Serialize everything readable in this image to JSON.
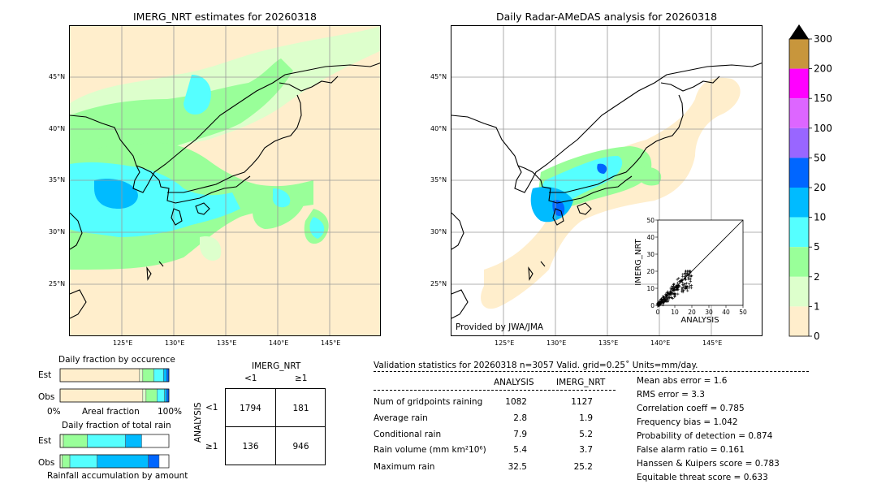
{
  "left_map": {
    "title": "IMERG_NRT estimates for 20260318",
    "lat_labels": [
      "45°N",
      "40°N",
      "35°N",
      "30°N",
      "25°N"
    ],
    "lon_labels": [
      "125°E",
      "130°E",
      "135°E",
      "140°E",
      "145°E"
    ]
  },
  "right_map": {
    "title": "Daily Radar-AMeDAS analysis for 20260318",
    "lat_labels": [
      "45°N",
      "40°N",
      "35°N",
      "30°N",
      "25°N"
    ],
    "lon_labels": [
      "125°E",
      "130°E",
      "135°E",
      "140°E",
      "145°E"
    ],
    "credit": "Provided by JWA/JMA"
  },
  "colorbar": {
    "levels": [
      "300",
      "200",
      "150",
      "100",
      "50",
      "20",
      "10",
      "5",
      "2",
      "1",
      "0"
    ],
    "colors": [
      "#c8963c",
      "#ff00ff",
      "#dd66ff",
      "#9966ff",
      "#0066ff",
      "#00bbff",
      "#55ffff",
      "#99ff99",
      "#ddffcc",
      "#ffeecc"
    ]
  },
  "chart_data": [
    {
      "type": "scatter",
      "name": "inset",
      "xlabel": "ANALYSIS",
      "ylabel": "IMERG_NRT",
      "xlim": [
        0,
        50
      ],
      "ylim": [
        0,
        50
      ],
      "xticks": [
        "0",
        "10",
        "20",
        "30",
        "40",
        "50"
      ],
      "yticks": [
        "0",
        "10",
        "20",
        "30",
        "40",
        "50"
      ],
      "reference_line": "y = x",
      "marker": "+"
    },
    {
      "type": "bar",
      "name": "fraction_by_occurrence",
      "title": "Daily fraction by occurence",
      "categories": [
        "Est",
        "Obs"
      ],
      "xlabel": "Areal fraction",
      "x_left": "0%",
      "x_right": "100%",
      "stacked": true,
      "series": [
        {
          "values": [
            0.73,
            0.76
          ],
          "color": "#ffeecc"
        },
        {
          "values": [
            0.03,
            0.03
          ],
          "color": "#ddffcc"
        },
        {
          "values": [
            0.1,
            0.1
          ],
          "color": "#99ff99"
        },
        {
          "values": [
            0.09,
            0.07
          ],
          "color": "#55ffff"
        },
        {
          "values": [
            0.03,
            0.02
          ],
          "color": "#00bbff"
        },
        {
          "values": [
            0.02,
            0.02
          ],
          "color": "#0066ff"
        }
      ]
    },
    {
      "type": "bar",
      "name": "fraction_of_total_rain",
      "title": "Daily fraction of total rain",
      "categories": [
        "Est",
        "Obs"
      ],
      "xlabel": "Rainfall accumulation by amount",
      "stacked": true,
      "series": [
        {
          "values": [
            0.03,
            0.02
          ],
          "color": "#ddffcc"
        },
        {
          "values": [
            0.22,
            0.07
          ],
          "color": "#99ff99"
        },
        {
          "values": [
            0.35,
            0.25
          ],
          "color": "#55ffff"
        },
        {
          "values": [
            0.15,
            0.47
          ],
          "color": "#00bbff"
        },
        {
          "values": [
            0.0,
            0.1
          ],
          "color": "#0066ff"
        }
      ]
    },
    {
      "type": "table",
      "name": "contingency",
      "title": "IMERG_NRT",
      "col_labels": [
        "<1",
        "≥1"
      ],
      "row_title": "ANALYSIS",
      "row_labels": [
        "<1",
        "≥1"
      ],
      "cells": [
        [
          "1794",
          "181"
        ],
        [
          "136",
          "946"
        ]
      ]
    },
    {
      "type": "table",
      "name": "validation",
      "title": "Validation statistics for 20260318  n=3057 Valid. grid=0.25˚ Units=mm/day.",
      "columns": [
        "ANALYSIS",
        "IMERG_NRT"
      ],
      "rows": [
        {
          "label": "Num of gridpoints raining",
          "analysis": "1082",
          "imerg": "1127"
        },
        {
          "label": "Average rain",
          "analysis": "2.8",
          "imerg": "1.9"
        },
        {
          "label": "Conditional rain",
          "analysis": "7.9",
          "imerg": "5.2"
        },
        {
          "label": "Rain volume (mm km²10⁶)",
          "analysis": "5.4",
          "imerg": "3.7"
        },
        {
          "label": "Maximum rain",
          "analysis": "32.5",
          "imerg": "25.2"
        }
      ],
      "scores": [
        "Mean abs error =    1.6",
        "RMS error =    3.3",
        "Correlation coeff =  0.785",
        "Frequency bias =  1.042",
        "Probability of detection =  0.874",
        "False alarm ratio =  0.161",
        "Hanssen & Kuipers score =  0.783",
        "Equitable threat score =  0.633"
      ]
    }
  ]
}
